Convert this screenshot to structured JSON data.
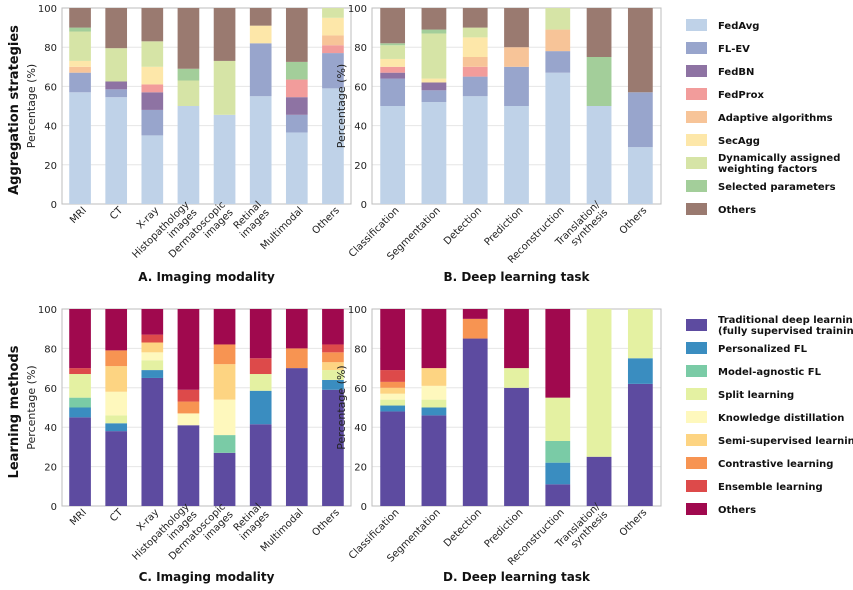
{
  "figure": {
    "row_labels": [
      "Aggregation strategies",
      "Learning methods"
    ]
  },
  "legends": [
    {
      "items": [
        {
          "label": "FedAvg",
          "color": "#BFD2E8"
        },
        {
          "label": "FL-EV",
          "color": "#98A5CC"
        },
        {
          "label": "FedBN",
          "color": "#8E73A3"
        },
        {
          "label": "FedProx",
          "color": "#F29C9B"
        },
        {
          "label": "Adaptive algorithms",
          "color": "#F7C498"
        },
        {
          "label": "SecAgg",
          "color": "#FDE7A9"
        },
        {
          "label": "Dynamically assigned weighting factors",
          "color": "#D6E4A6"
        },
        {
          "label": "Selected parameters",
          "color": "#A3CE9A"
        },
        {
          "label": "Others",
          "color": "#9A7A70"
        }
      ]
    },
    {
      "items": [
        {
          "label": "Traditional deep learning (fully supervised training)",
          "color": "#5D4BA0"
        },
        {
          "label": "Personalized FL",
          "color": "#3A8DC0"
        },
        {
          "label": "Model-agnostic FL",
          "color": "#7ACBA6"
        },
        {
          "label": "Split learning",
          "color": "#E4F1A2"
        },
        {
          "label": "Knowledge distillation",
          "color": "#FEF8BD"
        },
        {
          "label": "Semi-supervised learning",
          "color": "#FDD482"
        },
        {
          "label": "Contrastive learning",
          "color": "#F79452"
        },
        {
          "label": "Ensemble learning",
          "color": "#DD4A4A"
        },
        {
          "label": "Others",
          "color": "#A0094E"
        }
      ]
    }
  ],
  "chart_data": [
    {
      "type": "bar",
      "stacked": true,
      "panel": "A",
      "title": "A. Imaging modality",
      "ylabel": "Percentage (%)",
      "ylim": [
        0,
        100
      ],
      "yticks": [
        0,
        20,
        40,
        60,
        80,
        100
      ],
      "legend_index": 0,
      "categories": [
        "MRI",
        "CT",
        "X-ray",
        "Histopathology images",
        "Dermatoscopic images",
        "Retinal images",
        "Multimodal",
        "Others"
      ],
      "series": [
        {
          "name": "FedAvg",
          "values": [
            57,
            54.5,
            35,
            50,
            45.5,
            55,
            36.5,
            59
          ]
        },
        {
          "name": "FL-EV",
          "values": [
            10,
            4,
            13,
            0,
            0,
            27,
            9,
            18
          ]
        },
        {
          "name": "FedBN",
          "values": [
            0,
            4,
            9,
            0,
            0,
            0,
            9,
            0
          ]
        },
        {
          "name": "FedProx",
          "values": [
            0,
            0,
            4,
            0,
            0,
            0,
            9,
            4
          ]
        },
        {
          "name": "Adaptive algorithms",
          "values": [
            3,
            0,
            0,
            0,
            0,
            0,
            0,
            5
          ]
        },
        {
          "name": "SecAgg",
          "values": [
            3,
            0,
            9,
            0,
            0,
            9,
            0,
            9
          ]
        },
        {
          "name": "Dynamically assigned weighting factors",
          "values": [
            15,
            17,
            13,
            13,
            27.5,
            0,
            0,
            5
          ]
        },
        {
          "name": "Selected parameters",
          "values": [
            2,
            0,
            0,
            6,
            0,
            0,
            9,
            0
          ]
        },
        {
          "name": "Others",
          "values": [
            10,
            20.5,
            17,
            31,
            27,
            9,
            27.5,
            0
          ]
        }
      ]
    },
    {
      "type": "bar",
      "stacked": true,
      "panel": "B",
      "title": "B. Deep learning task",
      "ylabel": "Percentage (%)",
      "ylim": [
        0,
        100
      ],
      "yticks": [
        0,
        20,
        40,
        60,
        80,
        100
      ],
      "legend_index": 0,
      "categories": [
        "Classification",
        "Segmentation",
        "Detection",
        "Prediction",
        "Reconstruction",
        "Translation/ synthesis",
        "Others"
      ],
      "series": [
        {
          "name": "FedAvg",
          "values": [
            50,
            52,
            55,
            50,
            67,
            50,
            29
          ]
        },
        {
          "name": "FL-EV",
          "values": [
            14,
            6,
            10,
            20,
            11,
            0,
            28
          ]
        },
        {
          "name": "FedBN",
          "values": [
            3,
            4,
            0,
            0,
            0,
            0,
            0
          ]
        },
        {
          "name": "FedProx",
          "values": [
            3,
            0,
            5,
            0,
            0,
            0,
            0
          ]
        },
        {
          "name": "Adaptive algorithms",
          "values": [
            0,
            0,
            5,
            10,
            11,
            0,
            0
          ]
        },
        {
          "name": "SecAgg",
          "values": [
            4,
            2,
            10,
            0,
            0,
            0,
            0
          ]
        },
        {
          "name": "Dynamically assigned weighting factors",
          "values": [
            7,
            23,
            5,
            0,
            11,
            0,
            0
          ]
        },
        {
          "name": "Selected parameters",
          "values": [
            1,
            2,
            0,
            0,
            0,
            25,
            0
          ]
        },
        {
          "name": "Others",
          "values": [
            18,
            11,
            10,
            20,
            0,
            25,
            43
          ]
        }
      ]
    },
    {
      "type": "bar",
      "stacked": true,
      "panel": "C",
      "title": "C. Imaging modality",
      "ylabel": "Percentage (%)",
      "ylim": [
        0,
        100
      ],
      "yticks": [
        0,
        20,
        40,
        60,
        80,
        100
      ],
      "legend_index": 1,
      "categories": [
        "MRI",
        "CT",
        "X-ray",
        "Histopathology images",
        "Dermatoscopic images",
        "Retinal images",
        "Multimodal",
        "Others"
      ],
      "series": [
        {
          "name": "Traditional deep learning (fully supervised training)",
          "values": [
            45,
            38,
            65,
            41,
            27,
            41.5,
            70,
            59
          ]
        },
        {
          "name": "Personalized FL",
          "values": [
            5,
            4,
            4,
            0,
            0,
            17,
            0,
            5
          ]
        },
        {
          "name": "Model-agnostic FL",
          "values": [
            5,
            0,
            0,
            0,
            9,
            0,
            0,
            0
          ]
        },
        {
          "name": "Split learning",
          "values": [
            12,
            4,
            5,
            0,
            0,
            8.5,
            0,
            5
          ]
        },
        {
          "name": "Knowledge distillation",
          "values": [
            0,
            12,
            4,
            6,
            18,
            0,
            0,
            0
          ]
        },
        {
          "name": "Semi-supervised learning",
          "values": [
            0,
            13,
            5,
            0,
            18,
            0,
            0,
            4
          ]
        },
        {
          "name": "Contrastive learning",
          "values": [
            0,
            8,
            0,
            6,
            10,
            0,
            10,
            5
          ]
        },
        {
          "name": "Ensemble learning",
          "values": [
            3,
            0,
            4,
            6,
            0,
            8,
            0,
            4
          ]
        },
        {
          "name": "Others",
          "values": [
            30,
            21,
            13,
            41,
            18,
            25,
            20,
            18
          ]
        }
      ]
    },
    {
      "type": "bar",
      "stacked": true,
      "panel": "D",
      "title": "D. Deep learning task",
      "ylabel": "Percentage (%)",
      "ylim": [
        0,
        100
      ],
      "yticks": [
        0,
        20,
        40,
        60,
        80,
        100
      ],
      "legend_index": 1,
      "categories": [
        "Classification",
        "Segmentation",
        "Detection",
        "Prediction",
        "Reconstruction",
        "Translation/ synthesis",
        "Others"
      ],
      "series": [
        {
          "name": "Traditional deep learning (fully supervised training)",
          "values": [
            48,
            46,
            85,
            60,
            11,
            25,
            62
          ]
        },
        {
          "name": "Personalized FL",
          "values": [
            3,
            4,
            0,
            0,
            11,
            0,
            13
          ]
        },
        {
          "name": "Model-agnostic FL",
          "values": [
            0,
            0,
            0,
            0,
            11,
            0,
            0
          ]
        },
        {
          "name": "Split learning",
          "values": [
            3,
            4,
            0,
            10,
            22,
            75,
            25
          ]
        },
        {
          "name": "Knowledge distillation",
          "values": [
            3,
            7,
            0,
            0,
            0,
            0,
            0
          ]
        },
        {
          "name": "Semi-supervised learning",
          "values": [
            3,
            9,
            0,
            0,
            0,
            0,
            0
          ]
        },
        {
          "name": "Contrastive learning",
          "values": [
            3,
            0,
            10,
            0,
            0,
            0,
            0
          ]
        },
        {
          "name": "Ensemble learning",
          "values": [
            6,
            0,
            0,
            0,
            0,
            0,
            0
          ]
        },
        {
          "name": "Others",
          "values": [
            31,
            30,
            5,
            30,
            45,
            0,
            0
          ]
        }
      ]
    }
  ]
}
